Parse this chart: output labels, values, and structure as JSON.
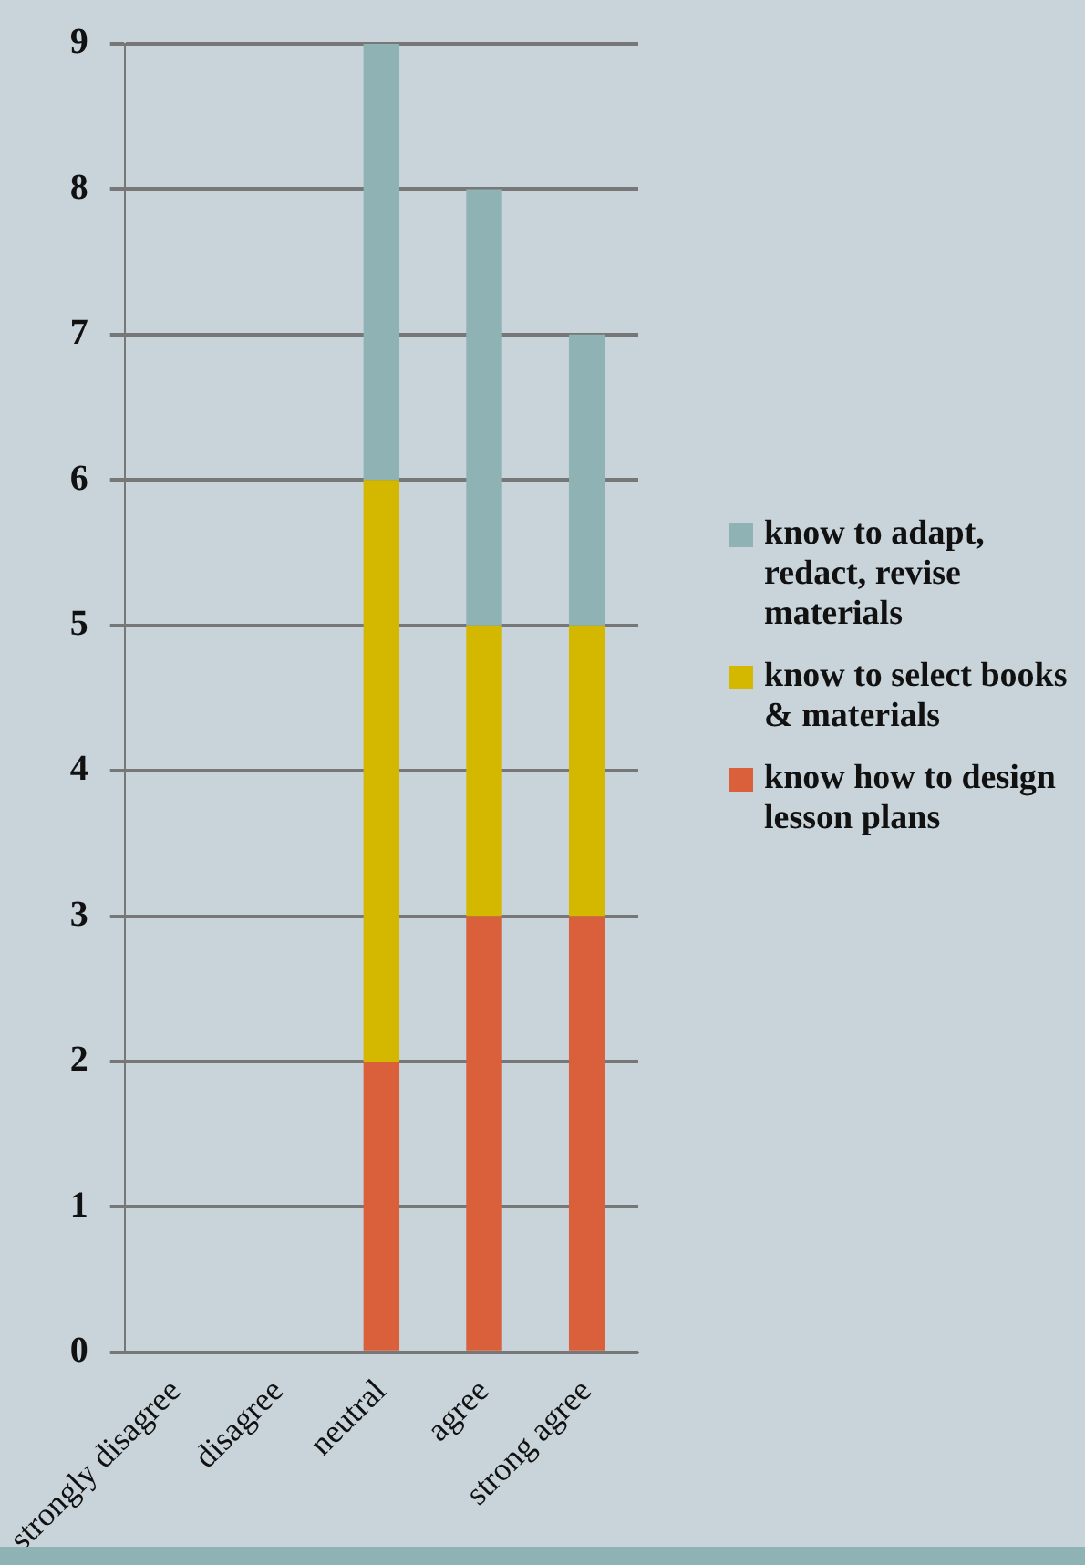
{
  "chart_data": {
    "type": "bar",
    "stacked": true,
    "categories": [
      "strongly disagree",
      "disagree",
      "neutral",
      "agree",
      "strong agree"
    ],
    "series": [
      {
        "name": "know how to design lesson plans",
        "color": "#d9603b",
        "values": [
          0,
          0,
          2,
          3,
          3
        ]
      },
      {
        "name": "know to select books & materials",
        "color": "#d4b800",
        "values": [
          0,
          0,
          4,
          2,
          2
        ]
      },
      {
        "name": "know to adapt, redact, revise materials",
        "color": "#8fb3b5",
        "values": [
          0,
          0,
          3,
          3,
          2
        ]
      }
    ],
    "ylim": [
      0,
      9
    ],
    "yticks": [
      0,
      1,
      2,
      3,
      4,
      5,
      6,
      7,
      8,
      9
    ],
    "grid": "y",
    "legend": "right"
  }
}
